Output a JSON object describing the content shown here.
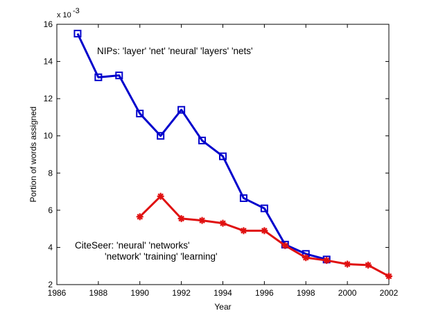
{
  "chart_data": {
    "type": "line",
    "title": "",
    "xlabel": "Year",
    "ylabel": "Portion of words assigned",
    "y_multiplier": {
      "base": "x 10",
      "exponent": "-3"
    },
    "xlim": [
      1986,
      2002
    ],
    "ylim": [
      2,
      16
    ],
    "x_ticks": [
      1986,
      1988,
      1990,
      1992,
      1994,
      1996,
      1998,
      2000,
      2002
    ],
    "y_ticks": [
      2,
      4,
      6,
      8,
      10,
      12,
      14,
      16
    ],
    "grid": false,
    "series": [
      {
        "color": "#0000cc",
        "marker": "square",
        "x": [
          1987,
          1988,
          1989,
          1990,
          1991,
          1992,
          1993,
          1994,
          1995,
          1996,
          1997,
          1998,
          1999
        ],
        "values": [
          15.5,
          13.15,
          13.25,
          11.2,
          10.0,
          11.4,
          9.75,
          8.9,
          6.65,
          6.1,
          4.15,
          3.65,
          3.35
        ]
      },
      {
        "color": "#e01010",
        "marker": "asterisk",
        "x": [
          1990,
          1991,
          1992,
          1993,
          1994,
          1995,
          1996,
          1997,
          1998,
          1999,
          2000,
          2001,
          2002
        ],
        "values": [
          5.65,
          6.75,
          5.55,
          5.45,
          5.3,
          4.9,
          4.9,
          4.1,
          3.45,
          3.3,
          3.1,
          3.05,
          2.45
        ]
      }
    ],
    "annotations": {
      "nips": "NIPs: 'layer'  'net'  'neural'  'layers'  'nets'",
      "citeseer_line1": "CiteSeer: 'neural' 'networks'",
      "citeseer_line2": "'network'  'training'  'learning'"
    }
  }
}
